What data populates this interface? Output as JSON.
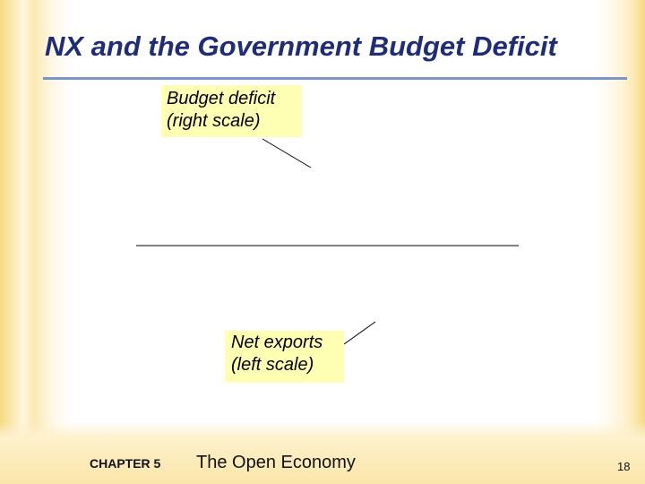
{
  "slide": {
    "title": "NX and the Government Budget Deficit"
  },
  "callouts": {
    "budget_deficit": {
      "line1": "Budget deficit",
      "line2": "(right scale)"
    },
    "net_exports": {
      "line1": "Net exports",
      "line2": "(left scale)"
    }
  },
  "footer": {
    "chapter": "CHAPTER 5",
    "book_title": "The Open Economy",
    "page_number": "18"
  },
  "colors": {
    "title": "#1f2d78",
    "title_rule": "#7d94c6",
    "callout_fill": "#ffffb3",
    "accent_stripe": "#f7d980"
  }
}
